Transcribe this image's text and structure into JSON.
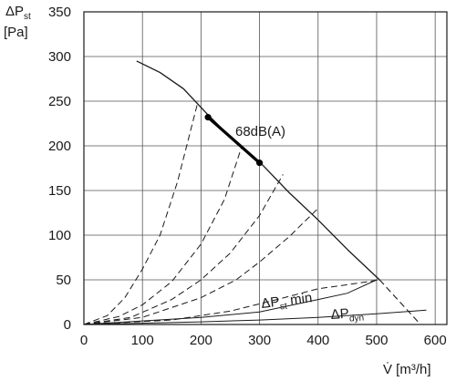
{
  "chart_data": {
    "type": "line",
    "y_axis_label": {
      "symbol": "ΔP",
      "sub": "st",
      "unit": "[Pa]"
    },
    "x_axis_label": "V̇ [m³/h]",
    "xlim": [
      0,
      620
    ],
    "ylim": [
      0,
      350
    ],
    "x_ticks": [
      "0",
      "100",
      "200",
      "300",
      "400",
      "500",
      "600"
    ],
    "y_ticks": [
      "0",
      "50",
      "100",
      "150",
      "200",
      "250",
      "300",
      "350"
    ],
    "grid": true,
    "fan_curve": {
      "x": [
        90,
        130,
        170,
        210,
        250,
        300,
        350,
        400,
        450,
        505
      ],
      "y": [
        295,
        282,
        264,
        236,
        210,
        182,
        148,
        117,
        84,
        50
      ]
    },
    "fan_curve_extension": {
      "x": [
        505,
        575
      ],
      "y": [
        50,
        0
      ]
    },
    "highlighted_segment": {
      "label": "68dB(A)",
      "points": [
        {
          "x": 212,
          "y": 232
        },
        {
          "x": 300,
          "y": 181
        }
      ]
    },
    "system_curves": [
      {
        "x": [
          0,
          40,
          70,
          100,
          130,
          160,
          195
        ],
        "y": [
          0,
          10,
          30,
          62,
          100,
          160,
          250
        ]
      },
      {
        "x": [
          0,
          60,
          100,
          150,
          200,
          240,
          270
        ],
        "y": [
          0,
          9,
          22,
          48,
          90,
          140,
          200
        ]
      },
      {
        "x": [
          0,
          80,
          150,
          200,
          250,
          300,
          340
        ],
        "y": [
          0,
          8,
          28,
          50,
          80,
          122,
          168
        ]
      },
      {
        "x": [
          0,
          100,
          200,
          260,
          300,
          350,
          400
        ],
        "y": [
          0,
          8,
          30,
          50,
          70,
          98,
          130
        ]
      },
      {
        "x": [
          0,
          150,
          250,
          330,
          400,
          455,
          505
        ],
        "y": [
          0,
          5,
          15,
          28,
          40,
          45,
          50
        ]
      }
    ],
    "dp_st_min": {
      "label": {
        "symbol": "ΔP",
        "sub": "st",
        "suffix": " min"
      },
      "x": [
        0,
        200,
        300,
        400,
        450,
        500
      ],
      "y": [
        0,
        8,
        14,
        28,
        35,
        50
      ]
    },
    "dp_dyn": {
      "label": {
        "symbol": "ΔP",
        "sub": "dyn"
      },
      "x": [
        0,
        200,
        300,
        400,
        500,
        585
      ],
      "y": [
        0,
        3,
        5,
        8,
        12,
        16
      ]
    }
  }
}
